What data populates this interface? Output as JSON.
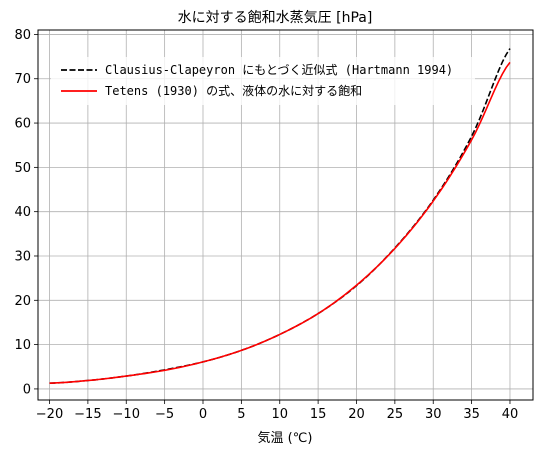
{
  "chart_data": {
    "type": "line",
    "title": "水に対する飽和水蒸気圧 [hPa]",
    "xlabel": "気温 (℃)",
    "ylabel": "",
    "xlim": [
      -21.5,
      43
    ],
    "ylim": [
      -2.5,
      81
    ],
    "xticks": [
      -20,
      -15,
      -10,
      -5,
      0,
      5,
      10,
      15,
      20,
      25,
      30,
      35,
      40
    ],
    "yticks": [
      0,
      10,
      20,
      30,
      40,
      50,
      60,
      70,
      80
    ],
    "grid": true,
    "legend_position": "top-left",
    "x": [
      -20,
      -15,
      -10,
      -5,
      0,
      5,
      10,
      15,
      20,
      25,
      30,
      35,
      40
    ],
    "series": [
      {
        "name": "Clausius-Clapeyron にもとづく近似式 (Hartmann 1994)",
        "color": "#000000",
        "dash": "dashed",
        "values": [
          1.3,
          1.9,
          2.9,
          4.3,
          6.1,
          8.7,
          12.3,
          17.0,
          23.3,
          31.8,
          42.6,
          57.0,
          76.8
        ]
      },
      {
        "name": "Tetens (1930) の式、液体の水に対する飽和",
        "color": "#ff0000",
        "dash": "solid",
        "values": [
          1.3,
          1.9,
          2.9,
          4.2,
          6.1,
          8.7,
          12.3,
          17.0,
          23.4,
          31.7,
          42.4,
          56.2,
          73.7
        ]
      }
    ]
  }
}
